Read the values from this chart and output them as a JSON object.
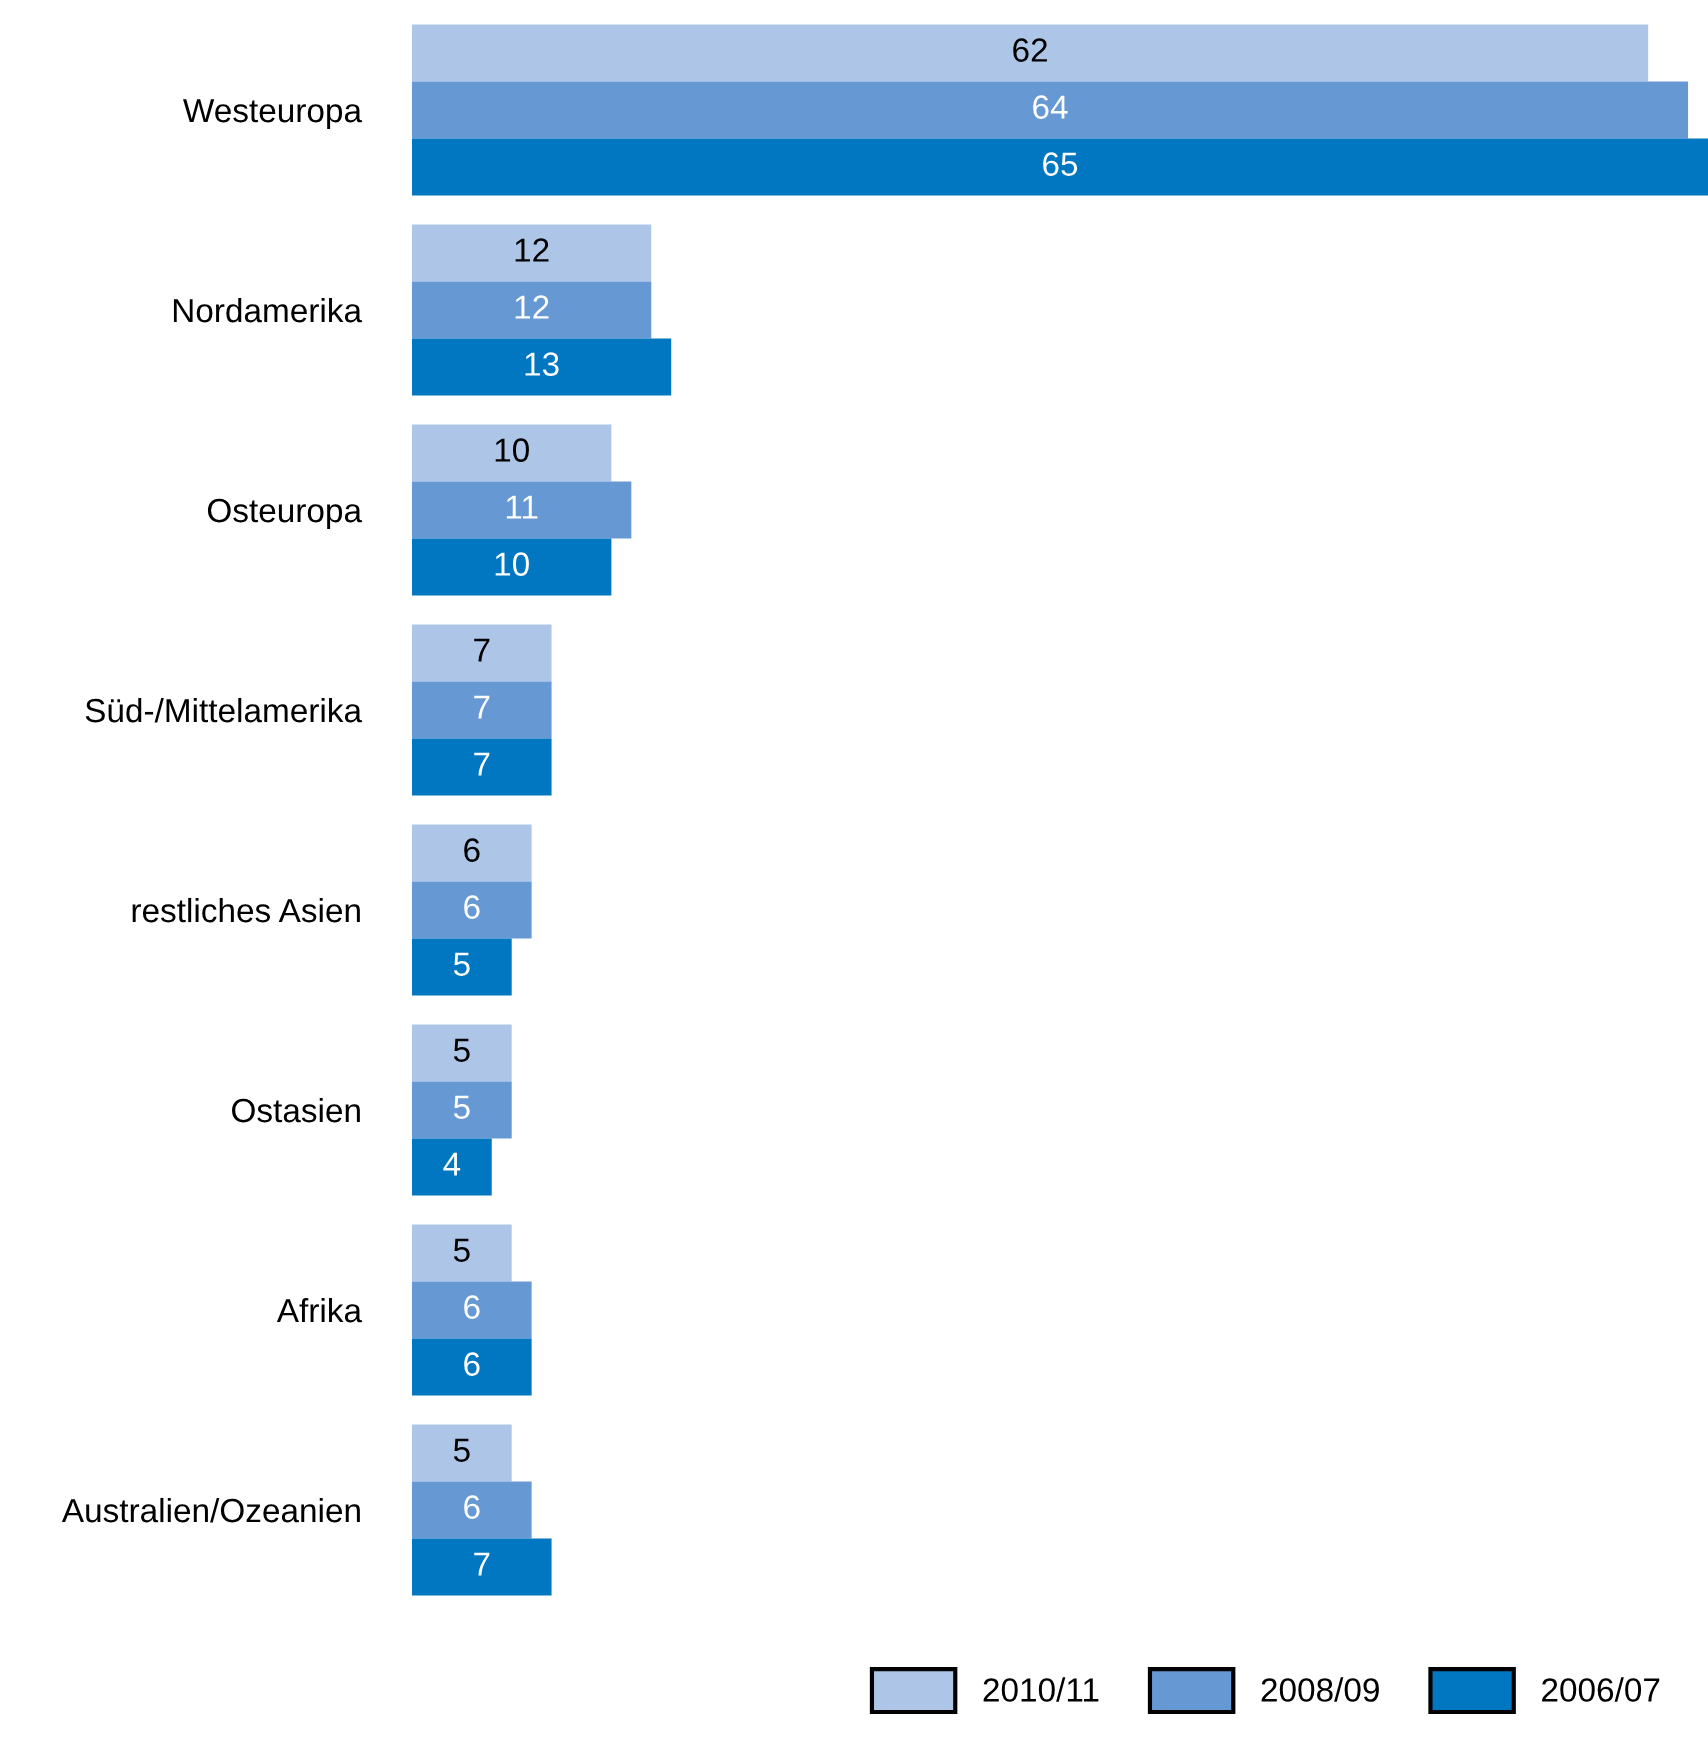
{
  "chart_data": {
    "type": "bar",
    "orientation": "horizontal",
    "data_labels": true,
    "legend": "bottom right",
    "categories": [
      "Westeuropa",
      "Nordamerika",
      "Osteuropa",
      "Süd-/Mittelamerika",
      "restliches Asien",
      "Ostasien",
      "Afrika",
      "Australien/Ozeanien"
    ],
    "series": [
      {
        "name": "2010/11",
        "color": "#adc6e8",
        "values": [
          62,
          12,
          10,
          7,
          6,
          5,
          5,
          5
        ]
      },
      {
        "name": "2008/09",
        "color": "#6699d4",
        "values": [
          64,
          12,
          11,
          7,
          6,
          5,
          6,
          6
        ]
      },
      {
        "name": "2006/07",
        "color": "#0077c0",
        "values": [
          65,
          13,
          10,
          7,
          5,
          4,
          6,
          7
        ]
      }
    ]
  }
}
